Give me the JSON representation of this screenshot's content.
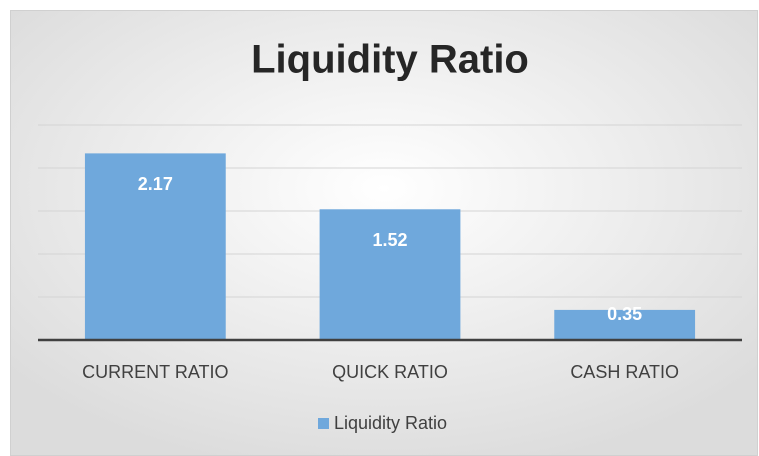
{
  "chart_data": {
    "type": "bar",
    "title": "Liquidity Ratio",
    "categories": [
      "CURRENT RATIO",
      "QUICK RATIO",
      "CASH RATIO"
    ],
    "series": [
      {
        "name": "Liquidity Ratio",
        "color": "#6fa8dc",
        "values": [
          2.17,
          1.52,
          0.35
        ]
      }
    ],
    "ylim": [
      0,
      2.5
    ],
    "yticks": [
      0,
      0.5,
      1,
      1.5,
      2,
      2.5
    ],
    "grid": true,
    "legend": "bottom"
  }
}
